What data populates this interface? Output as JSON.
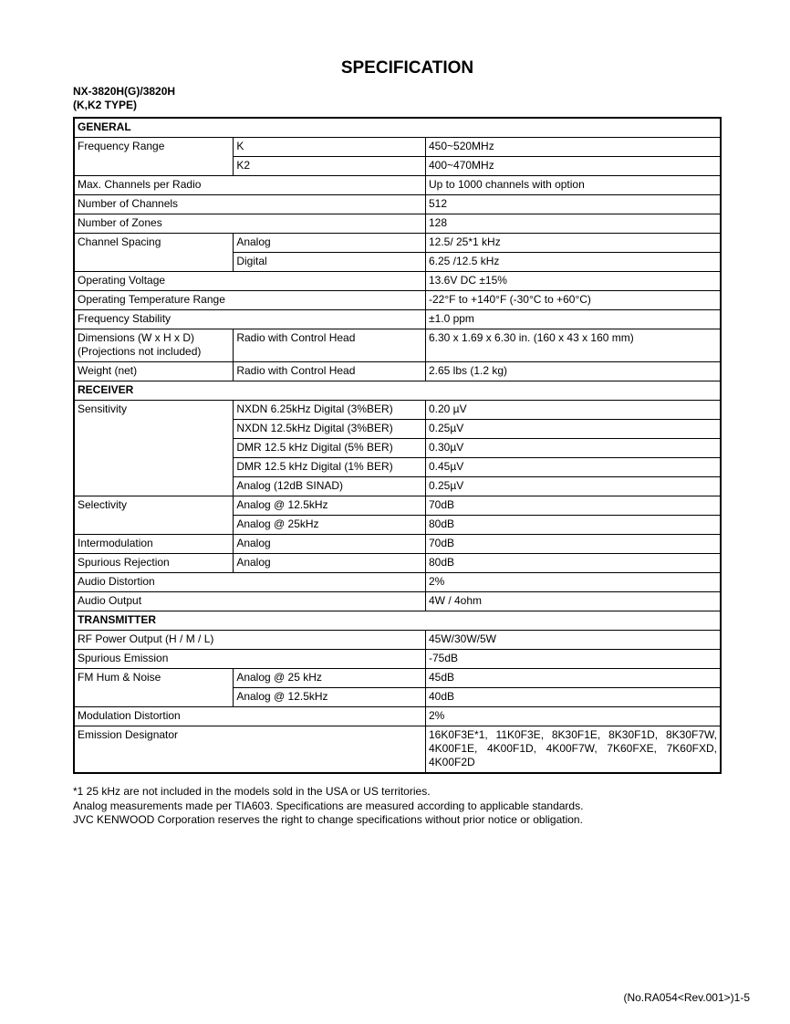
{
  "title": "SPECIFICATION",
  "model_line1": "NX-3820H(G)/3820H",
  "model_line2": "(K,K2 TYPE)",
  "table": [
    {
      "section": "GENERAL"
    },
    {
      "cells": [
        {
          "t": "Frequency Range",
          "rs": 2
        },
        {
          "t": "K"
        },
        {
          "t": "450~520MHz"
        }
      ]
    },
    {
      "cells": [
        {
          "t": "K2"
        },
        {
          "t": "400~470MHz"
        }
      ]
    },
    {
      "cells": [
        {
          "t": "Max. Channels per Radio",
          "cs": 2
        },
        {
          "t": "Up to 1000 channels with option"
        }
      ]
    },
    {
      "cells": [
        {
          "t": "Number of Channels",
          "cs": 2
        },
        {
          "t": "512"
        }
      ]
    },
    {
      "cells": [
        {
          "t": "Number of Zones",
          "cs": 2
        },
        {
          "t": "128"
        }
      ]
    },
    {
      "cells": [
        {
          "t": "Channel Spacing",
          "rs": 2
        },
        {
          "t": "Analog"
        },
        {
          "t": "12.5/ 25*1 kHz"
        }
      ]
    },
    {
      "cells": [
        {
          "t": "Digital"
        },
        {
          "t": "6.25 /12.5 kHz"
        }
      ]
    },
    {
      "cells": [
        {
          "t": "Operating Voltage",
          "cs": 2
        },
        {
          "t": "13.6V DC ±15%"
        }
      ]
    },
    {
      "cells": [
        {
          "t": "Operating Temperature Range",
          "cs": 2
        },
        {
          "t": "-22°F to +140°F (-30°C to +60°C)"
        }
      ]
    },
    {
      "cells": [
        {
          "t": "Frequency Stability",
          "cs": 2
        },
        {
          "t": "±1.0 ppm"
        }
      ]
    },
    {
      "cells": [
        {
          "t": "Dimensions (W x H x D)",
          "t2": "(Projections not included)"
        },
        {
          "t": "Radio with Control Head"
        },
        {
          "t": "6.30 x 1.69 x 6.30 in. (160 x 43 x 160 mm)"
        }
      ]
    },
    {
      "cells": [
        {
          "t": "Weight (net)"
        },
        {
          "t": "Radio with Control Head"
        },
        {
          "t": "2.65 lbs (1.2 kg)"
        }
      ]
    },
    {
      "section": "RECEIVER"
    },
    {
      "cells": [
        {
          "t": "Sensitivity",
          "rs": 5
        },
        {
          "t": "NXDN 6.25kHz Digital (3%BER)"
        },
        {
          "t": "0.20 µV"
        }
      ]
    },
    {
      "cells": [
        {
          "t": "NXDN 12.5kHz Digital (3%BER)"
        },
        {
          "t": "0.25µV"
        }
      ]
    },
    {
      "cells": [
        {
          "t": "DMR 12.5 kHz Digital (5% BER)"
        },
        {
          "t": "0.30µV"
        }
      ]
    },
    {
      "cells": [
        {
          "t": "DMR 12.5 kHz Digital (1% BER)"
        },
        {
          "t": "0.45µV"
        }
      ]
    },
    {
      "cells": [
        {
          "t": "Analog (12dB SINAD)"
        },
        {
          "t": "0.25µV"
        }
      ]
    },
    {
      "cells": [
        {
          "t": "Selectivity",
          "rs": 2
        },
        {
          "t": "Analog @ 12.5kHz"
        },
        {
          "t": "70dB"
        }
      ]
    },
    {
      "cells": [
        {
          "t": "Analog @ 25kHz"
        },
        {
          "t": "80dB"
        }
      ]
    },
    {
      "cells": [
        {
          "t": "Intermodulation"
        },
        {
          "t": "Analog"
        },
        {
          "t": "70dB"
        }
      ]
    },
    {
      "cells": [
        {
          "t": "Spurious Rejection"
        },
        {
          "t": "Analog"
        },
        {
          "t": "80dB"
        }
      ]
    },
    {
      "cells": [
        {
          "t": "Audio Distortion",
          "cs": 2
        },
        {
          "t": "2%"
        }
      ]
    },
    {
      "cells": [
        {
          "t": "Audio Output",
          "cs": 2
        },
        {
          "t": "4W / 4ohm"
        }
      ]
    },
    {
      "section": "TRANSMITTER"
    },
    {
      "cells": [
        {
          "t": "RF Power Output (H / M / L)",
          "cs": 2
        },
        {
          "t": "45W/30W/5W"
        }
      ]
    },
    {
      "cells": [
        {
          "t": "Spurious Emission",
          "cs": 2
        },
        {
          "t": "-75dB"
        }
      ]
    },
    {
      "cells": [
        {
          "t": "FM Hum & Noise",
          "rs": 2
        },
        {
          "t": "Analog @ 25 kHz"
        },
        {
          "t": "45dB"
        }
      ]
    },
    {
      "cells": [
        {
          "t": "Analog @ 12.5kHz"
        },
        {
          "t": "40dB"
        }
      ]
    },
    {
      "cells": [
        {
          "t": "Modulation Distortion",
          "cs": 2
        },
        {
          "t": "2%"
        }
      ]
    },
    {
      "cells": [
        {
          "t": "Emission Designator",
          "cs": 2
        },
        {
          "t": "16K0F3E*1, 11K0F3E, 8K30F1E, 8K30F1D, 8K30F7W, 4K00F1E, 4K00F1D, 4K00F7W, 7K60FXE, 7K60FXD, 4K00F2D",
          "just": true
        }
      ]
    }
  ],
  "notes": [
    "*1 25 kHz are not included in the models sold in the USA or US territories.",
    "Analog measurements made per TIA603. Specifications are measured according to applicable standards.",
    "JVC KENWOOD Corporation reserves the right to change specifications without prior notice or obligation."
  ],
  "footer": "(No.RA054<Rev.001>)1-5"
}
